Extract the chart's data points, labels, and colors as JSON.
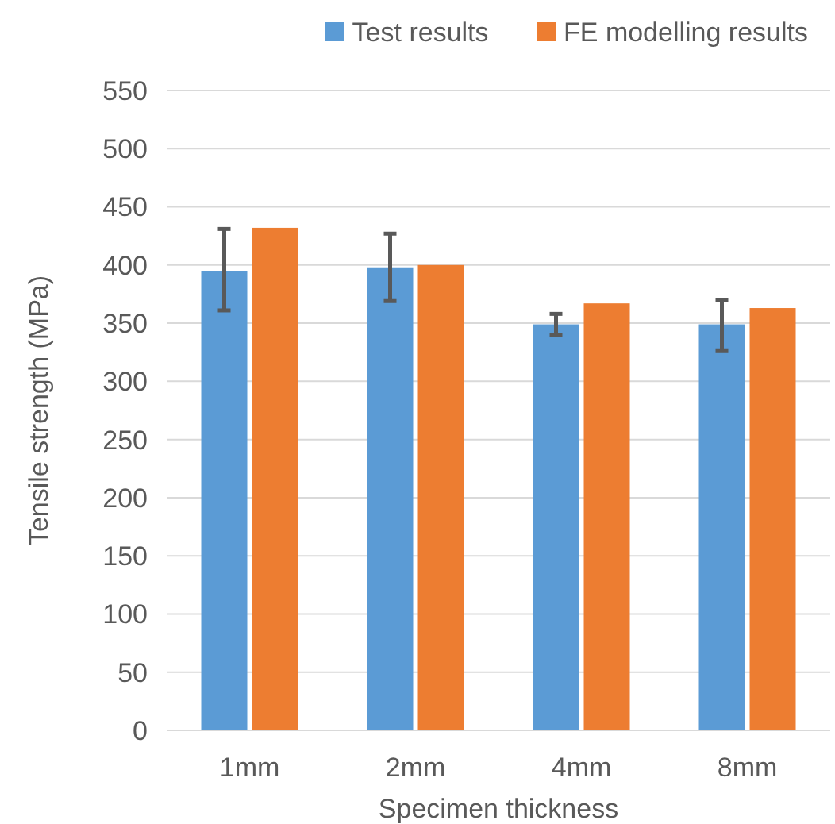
{
  "chart_data": {
    "type": "bar",
    "xlabel": "Specimen thickness",
    "ylabel": "Tensile strength (MPa)",
    "categories": [
      "1mm",
      "2mm",
      "4mm",
      "8mm"
    ],
    "series": [
      {
        "name": "Test results",
        "color": "#5b9bd5",
        "values": [
          395,
          398,
          349,
          349
        ],
        "errors": [
          [
            361,
            431
          ],
          [
            369,
            427
          ],
          [
            340,
            358
          ],
          [
            326,
            370
          ]
        ]
      },
      {
        "name": "FE modelling results",
        "color": "#ed7d31",
        "values": [
          432,
          400,
          367,
          363
        ]
      }
    ],
    "ylim": [
      0,
      550
    ],
    "yticks": [
      0,
      50,
      100,
      150,
      200,
      250,
      300,
      350,
      400,
      450,
      500,
      550
    ],
    "grid": "y",
    "legend": "top right"
  }
}
